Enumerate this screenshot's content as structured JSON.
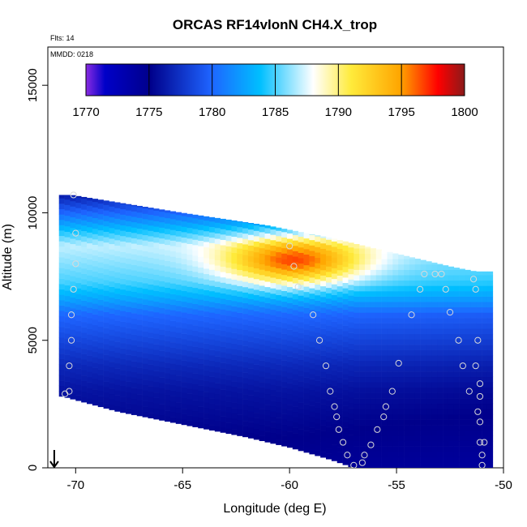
{
  "chart_data": {
    "type": "heatmap",
    "title": "ORCAS RF14vlonN CH4.X_trop",
    "flights_label": "Flts: 14",
    "date_label": "MMDD: 0218",
    "xlabel": "Longitude (deg E)",
    "ylabel": "Altitude (m)",
    "xlim": [
      -71.3,
      -50
    ],
    "ylim": [
      0,
      16500
    ],
    "x_ticks": [
      -70,
      -65,
      -60,
      -55,
      -50
    ],
    "x_tick_labels": [
      "-70",
      "-65",
      "-60",
      "-55",
      "-50"
    ],
    "y_ticks": [
      0,
      5000,
      10000,
      15000
    ],
    "y_tick_labels": [
      "0",
      "5000",
      "10000",
      "15000"
    ],
    "colorbar": {
      "min": 1770,
      "max": 1800,
      "ticks": [
        1770,
        1775,
        1780,
        1785,
        1790,
        1795,
        1800
      ],
      "tick_labels": [
        "1770",
        "1775",
        "1780",
        "1785",
        "1790",
        "1795",
        "1800"
      ],
      "colors": [
        "#8a2be2",
        "#0000c8",
        "#00008b",
        "#1e64ff",
        "#00bfff",
        "#ffffff",
        "#ffeb3b",
        "#ffa500",
        "#ff0000",
        "#8b1a1a"
      ],
      "color_positions": [
        0.0,
        0.05,
        0.17,
        0.33,
        0.46,
        0.6,
        0.7,
        0.83,
        0.93,
        1.0
      ]
    },
    "field": {
      "profile_altitude_m": [
        0,
        1000,
        2000,
        3000,
        4000,
        5000,
        6000,
        6700,
        7300,
        8000,
        8700,
        9300,
        10000,
        10800
      ],
      "profile_ch4": [
        1774.5,
        1775,
        1775.5,
        1776,
        1777,
        1778.5,
        1780,
        1783,
        1785,
        1786,
        1787,
        1784,
        1780,
        1776
      ],
      "top_altitude_m": [
        [
          -70.2,
          10700
        ],
        [
          -65,
          10000
        ],
        [
          -61,
          9500
        ],
        [
          -58,
          9000
        ],
        [
          -56,
          8600
        ],
        [
          -54,
          8200
        ],
        [
          -52.5,
          7900
        ],
        [
          -51.3,
          7700
        ]
      ],
      "bottom_altitude_m": [
        [
          -70.6,
          2800
        ],
        [
          -68,
          2200
        ],
        [
          -65,
          1700
        ],
        [
          -62,
          1200
        ],
        [
          -60,
          800
        ],
        [
          -58,
          300
        ],
        [
          -57,
          0
        ],
        [
          -50.9,
          0
        ]
      ],
      "plume": {
        "lon": -59.8,
        "alt_m": 8100,
        "ch4_max": 1797.5
      }
    },
    "flight_track": [
      [
        -70.1,
        10700
      ],
      [
        -70,
        9200
      ],
      [
        -70,
        8000
      ],
      [
        -70.1,
        7000
      ],
      [
        -70.2,
        6000
      ],
      [
        -70.2,
        5000
      ],
      [
        -70.3,
        4000
      ],
      [
        -70.3,
        3000
      ],
      [
        -70.5,
        2900
      ],
      [
        -60,
        8700
      ],
      [
        -59.8,
        7900
      ],
      [
        -59.6,
        7100
      ],
      [
        -58.9,
        6000
      ],
      [
        -58.6,
        5000
      ],
      [
        -58.3,
        4000
      ],
      [
        -58.1,
        3000
      ],
      [
        -57.9,
        2400
      ],
      [
        -57.8,
        2000
      ],
      [
        -57.7,
        1500
      ],
      [
        -57.5,
        1000
      ],
      [
        -57.3,
        500
      ],
      [
        -57.0,
        100
      ],
      [
        -56.6,
        200
      ],
      [
        -56.5,
        500
      ],
      [
        -56.2,
        900
      ],
      [
        -55.9,
        1500
      ],
      [
        -55.6,
        2000
      ],
      [
        -55.5,
        2400
      ],
      [
        -55.2,
        3000
      ],
      [
        -54.9,
        4100
      ],
      [
        -54.3,
        6000
      ],
      [
        -53.9,
        7000
      ],
      [
        -53.7,
        7600
      ],
      [
        -53.2,
        7600
      ],
      [
        -52.9,
        7600
      ],
      [
        -52.7,
        7000
      ],
      [
        -52.5,
        6100
      ],
      [
        -52.1,
        5000
      ],
      [
        -51.9,
        4000
      ],
      [
        -51.6,
        3000
      ],
      [
        -51.4,
        7400
      ],
      [
        -51.3,
        7000
      ],
      [
        -51.2,
        5000
      ],
      [
        -51.3,
        4000
      ],
      [
        -51.2,
        2200
      ],
      [
        -51.1,
        1000
      ],
      [
        -51.0,
        500
      ],
      [
        -51.0,
        100
      ],
      [
        -50.9,
        1000
      ],
      [
        -51.1,
        3300
      ],
      [
        -51.1,
        2800
      ],
      [
        -51.1,
        1800
      ]
    ],
    "marker": {
      "lon": -71.0,
      "alt_m": 700
    }
  }
}
